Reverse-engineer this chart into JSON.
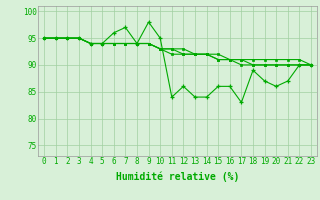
{
  "x": [
    0,
    1,
    2,
    3,
    4,
    5,
    6,
    7,
    8,
    9,
    10,
    11,
    12,
    13,
    14,
    15,
    16,
    17,
    18,
    19,
    20,
    21,
    22,
    23
  ],
  "line1": [
    95,
    95,
    95,
    95,
    94,
    94,
    96,
    97,
    94,
    98,
    95,
    84,
    86,
    84,
    84,
    86,
    86,
    83,
    89,
    87,
    86,
    87,
    90,
    90
  ],
  "line2": [
    95,
    95,
    95,
    95,
    94,
    94,
    94,
    94,
    94,
    94,
    93,
    92,
    92,
    92,
    92,
    91,
    91,
    90,
    90,
    90,
    90,
    90,
    90,
    90
  ],
  "line3": [
    95,
    95,
    95,
    95,
    94,
    94,
    94,
    94,
    94,
    94,
    93,
    93,
    93,
    92,
    92,
    92,
    91,
    91,
    91,
    91,
    91,
    91,
    91,
    90
  ],
  "line4": [
    95,
    95,
    95,
    95,
    94,
    94,
    94,
    94,
    94,
    94,
    93,
    93,
    92,
    92,
    92,
    91,
    91,
    91,
    90,
    90,
    90,
    90,
    90,
    90
  ],
  "bg_color": "#d8f0d8",
  "grid_color": "#a0d0a0",
  "line_color": "#00aa00",
  "xlabel": "Humidité relative (%)",
  "xlabel_fontsize": 7,
  "tick_fontsize": 5.5,
  "ylim": [
    73,
    101
  ],
  "yticks": [
    75,
    80,
    85,
    90,
    95,
    100
  ],
  "xticks": [
    0,
    1,
    2,
    3,
    4,
    5,
    6,
    7,
    8,
    9,
    10,
    11,
    12,
    13,
    14,
    15,
    16,
    17,
    18,
    19,
    20,
    21,
    22,
    23
  ]
}
